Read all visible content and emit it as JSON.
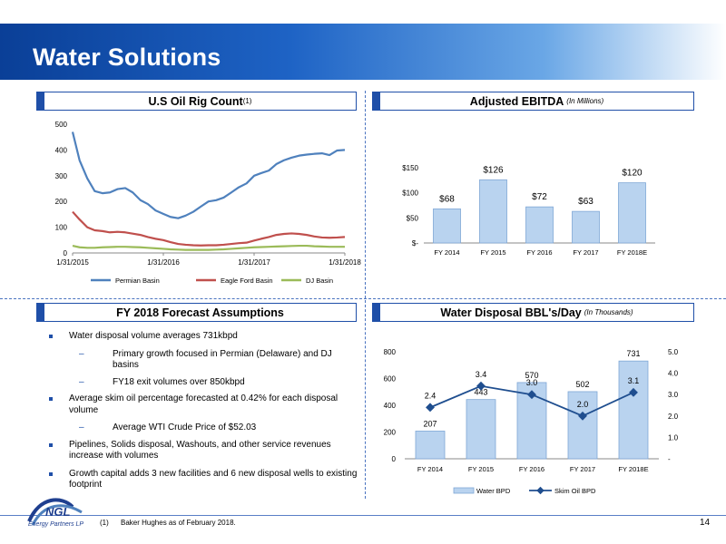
{
  "title": "Water Solutions",
  "sections": {
    "rig_count": {
      "title": "U.S Oil Rig Count",
      "sup": "(1)"
    },
    "ebitda": {
      "title": "Adjusted EBITDA",
      "note": "(In Millions)"
    },
    "forecast": {
      "title": "FY 2018 Forecast Assumptions"
    },
    "disposal": {
      "title": "Water Disposal BBL's/Day",
      "note": "(In Thousands)"
    }
  },
  "colors": {
    "permian": "#4f81bd",
    "eagle_ford": "#c0504d",
    "dj": "#9bbb59",
    "bar": "#b9d3ef",
    "skim": "#1f4e8f",
    "accent": "#1f4fa8"
  },
  "chart_data": [
    {
      "type": "line",
      "name": "rig_count",
      "x_ticks": [
        "1/31/2015",
        "1/31/2016",
        "1/31/2017",
        "1/31/2018"
      ],
      "y_ticks": [
        "0",
        "100",
        "200",
        "300",
        "400",
        "500"
      ],
      "ylim": [
        0,
        500
      ],
      "x_dates": [
        "2015-01-31",
        "2015-02-28",
        "2015-03-31",
        "2015-04-30",
        "2015-05-31",
        "2015-06-30",
        "2015-07-31",
        "2015-08-31",
        "2015-09-30",
        "2015-10-31",
        "2015-11-30",
        "2015-12-31",
        "2016-01-31",
        "2016-02-29",
        "2016-03-31",
        "2016-04-30",
        "2016-05-31",
        "2016-06-30",
        "2016-07-31",
        "2016-08-31",
        "2016-09-30",
        "2016-10-31",
        "2016-11-30",
        "2016-12-31",
        "2017-01-31",
        "2017-02-28",
        "2017-03-31",
        "2017-04-30",
        "2017-05-31",
        "2017-06-30",
        "2017-07-31",
        "2017-08-31",
        "2017-09-30",
        "2017-10-31",
        "2017-11-30",
        "2017-12-31",
        "2018-01-31"
      ],
      "legend_position": "bottom",
      "series": [
        {
          "name": "Permian Basin",
          "values": [
            470,
            360,
            290,
            240,
            232,
            235,
            248,
            252,
            235,
            205,
            190,
            165,
            152,
            140,
            135,
            145,
            160,
            180,
            200,
            205,
            215,
            235,
            255,
            270,
            300,
            310,
            320,
            345,
            360,
            370,
            378,
            382,
            385,
            387,
            380,
            398,
            400
          ]
        },
        {
          "name": "Eagle Ford Basin",
          "values": [
            160,
            130,
            100,
            88,
            85,
            80,
            82,
            80,
            75,
            70,
            62,
            55,
            50,
            42,
            35,
            32,
            30,
            29,
            30,
            30,
            32,
            35,
            38,
            40,
            48,
            55,
            62,
            70,
            74,
            76,
            74,
            70,
            64,
            60,
            59,
            60,
            62
          ]
        },
        {
          "name": "DJ Basin",
          "values": [
            28,
            22,
            20,
            20,
            22,
            23,
            24,
            24,
            23,
            22,
            20,
            18,
            16,
            14,
            13,
            12,
            12,
            12,
            12,
            13,
            14,
            16,
            18,
            20,
            22,
            23,
            24,
            25,
            26,
            27,
            28,
            28,
            26,
            25,
            24,
            24,
            24
          ]
        }
      ]
    },
    {
      "type": "bar",
      "name": "ebitda",
      "categories": [
        "FY 2014",
        "FY 2015",
        "FY 2016",
        "FY 2017",
        "FY 2018E"
      ],
      "values": [
        68,
        126,
        72,
        63,
        120
      ],
      "data_labels": [
        "$68",
        "$126",
        "$72",
        "$63",
        "$120"
      ],
      "y_ticks": [
        "$-",
        "$50",
        "$100",
        "$150"
      ],
      "ylim": [
        0,
        150
      ]
    },
    {
      "type": "bar",
      "name": "disposal",
      "categories": [
        "FY 2014",
        "FY 2015",
        "FY 2016",
        "FY 2017",
        "FY 2018E"
      ],
      "series": [
        {
          "name": "Water BPD",
          "values": [
            207,
            443,
            570,
            502,
            731
          ],
          "labels": [
            "207",
            "443",
            "570",
            "502",
            "731"
          ]
        },
        {
          "name": "Skim Oil BPD",
          "type": "line",
          "axis": "right",
          "values": [
            2.4,
            3.4,
            3.0,
            2.0,
            3.1
          ],
          "labels": [
            "2.4",
            "3.4",
            "3.0",
            "2.0",
            "3.1"
          ]
        }
      ],
      "y_ticks_left": [
        "0",
        "200",
        "400",
        "600",
        "800"
      ],
      "ylim_left": [
        0,
        800
      ],
      "y_ticks_right": [
        "-",
        "1.0",
        "2.0",
        "3.0",
        "4.0",
        "5.0"
      ],
      "ylim_right": [
        0,
        5
      ]
    }
  ],
  "bullets": [
    {
      "level": 1,
      "text": "Water disposal volume averages 731kbpd"
    },
    {
      "level": 2,
      "text": "Primary growth focused in Permian (Delaware) and DJ basins"
    },
    {
      "level": 2,
      "text": "FY18 exit volumes over 850kbpd"
    },
    {
      "level": 1,
      "text": "Average skim oil percentage forecasted at 0.42% for each disposal volume"
    },
    {
      "level": 2,
      "text": "Average WTI Crude Price of $52.03"
    },
    {
      "level": 1,
      "text": "Pipelines, Solids disposal, Washouts, and other service revenues increase with volumes"
    },
    {
      "level": 1,
      "text": "Growth capital adds 3 new facilities and 6 new disposal wells to existing footprint"
    }
  ],
  "footnote": {
    "num": "(1)",
    "text": "Baker Hughes as of  February 2018."
  },
  "page_number": "14",
  "logo": {
    "text": "NGL",
    "tagline": "Energy Partners LP"
  }
}
